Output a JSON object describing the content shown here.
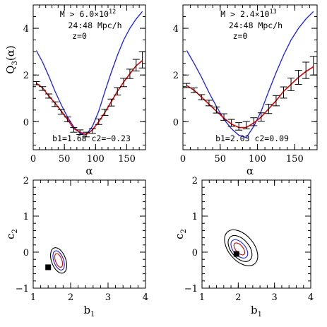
{
  "chart_data": [
    {
      "panel": "top-left",
      "type": "line",
      "ylabel": "Q",
      "ylabel_sub": "3",
      "ylabel_paren": "(α)",
      "xlabel": "α",
      "xlim": [
        0,
        180
      ],
      "ylim": [
        -1.2,
        5.0
      ],
      "xticks": [
        0,
        50,
        100,
        150
      ],
      "yticks": [
        0,
        2,
        4
      ],
      "annotations": {
        "mass_prefix": "M > 6.0×10",
        "mass_exp": "12",
        "scale": "24:48 Mpc/h",
        "redshift": "z=0",
        "fit": "b1=1.68 c2=−0.23"
      },
      "series": [
        {
          "kind": "model-blue",
          "color": "#1a1aff",
          "x": [
            5,
            15,
            25,
            35,
            45,
            55,
            65,
            75,
            85,
            95,
            105,
            115,
            125,
            135,
            145,
            155,
            165,
            175
          ],
          "y": [
            3.05,
            2.55,
            1.95,
            1.3,
            0.72,
            0.2,
            -0.22,
            -0.5,
            -0.55,
            -0.2,
            0.45,
            1.3,
            2.1,
            2.85,
            3.5,
            4.0,
            4.4,
            4.72
          ]
        },
        {
          "kind": "model-red",
          "color": "#dd0000",
          "x": [
            5,
            15,
            25,
            35,
            45,
            55,
            65,
            75,
            85,
            95,
            105,
            115,
            125,
            135,
            145,
            155,
            165,
            175
          ],
          "y": [
            1.65,
            1.45,
            1.1,
            0.8,
            0.45,
            0.1,
            -0.3,
            -0.45,
            -0.55,
            -0.35,
            0.0,
            0.4,
            0.85,
            1.3,
            1.7,
            2.05,
            2.4,
            2.62
          ]
        },
        {
          "kind": "measurement",
          "color": "#000000",
          "x": [
            5,
            15,
            25,
            35,
            45,
            55,
            65,
            75,
            85,
            95,
            105,
            115,
            125,
            135,
            145,
            155,
            165,
            175
          ],
          "y": [
            1.65,
            1.42,
            1.1,
            0.75,
            0.42,
            0.1,
            -0.35,
            -0.45,
            -0.55,
            -0.4,
            0.0,
            0.4,
            0.82,
            1.3,
            1.68,
            2.05,
            2.42,
            2.65
          ],
          "err": [
            0.07,
            0.08,
            0.09,
            0.1,
            0.1,
            0.1,
            0.1,
            0.1,
            0.1,
            0.1,
            0.12,
            0.13,
            0.15,
            0.16,
            0.18,
            0.2,
            0.25,
            0.35
          ]
        }
      ]
    },
    {
      "panel": "top-right",
      "type": "line",
      "xlabel": "α",
      "xlim": [
        0,
        180
      ],
      "ylim": [
        -1.2,
        5.0
      ],
      "xticks": [
        0,
        50,
        100,
        150
      ],
      "yticks": [
        0,
        2,
        4
      ],
      "annotations": {
        "mass_prefix": "M > 2.4×10",
        "mass_exp": "13",
        "scale": "24:48 Mpc/h",
        "redshift": "z=0",
        "fit": "b1=2.03 c2=0.09"
      },
      "series": [
        {
          "kind": "model-blue",
          "color": "#1a1aff",
          "x": [
            5,
            15,
            25,
            35,
            45,
            55,
            65,
            75,
            85,
            95,
            105,
            115,
            125,
            135,
            145,
            155,
            165,
            175
          ],
          "y": [
            3.05,
            2.5,
            1.9,
            1.25,
            0.65,
            0.1,
            -0.3,
            -0.58,
            -0.68,
            -0.2,
            0.45,
            1.3,
            2.1,
            2.85,
            3.5,
            4.0,
            4.4,
            4.72
          ]
        },
        {
          "kind": "model-red",
          "color": "#dd0000",
          "x": [
            5,
            15,
            25,
            35,
            45,
            55,
            65,
            75,
            85,
            95,
            105,
            115,
            125,
            135,
            145,
            155,
            165,
            175
          ],
          "y": [
            1.55,
            1.35,
            1.05,
            0.75,
            0.45,
            0.15,
            -0.1,
            -0.25,
            -0.25,
            -0.05,
            0.2,
            0.55,
            0.9,
            1.3,
            1.6,
            1.9,
            2.15,
            2.35
          ]
        },
        {
          "kind": "measurement",
          "color": "#000000",
          "x": [
            5,
            15,
            25,
            35,
            45,
            55,
            65,
            75,
            85,
            95,
            105,
            115,
            125,
            135,
            145,
            155,
            165,
            175
          ],
          "y": [
            1.55,
            1.35,
            1.05,
            0.8,
            0.5,
            0.2,
            -0.05,
            -0.2,
            -0.15,
            0.0,
            0.2,
            0.55,
            0.9,
            1.25,
            1.6,
            1.9,
            2.2,
            2.4
          ],
          "err": [
            0.09,
            0.1,
            0.11,
            0.12,
            0.13,
            0.14,
            0.15,
            0.16,
            0.16,
            0.17,
            0.18,
            0.2,
            0.22,
            0.24,
            0.27,
            0.3,
            0.35,
            0.4
          ]
        }
      ]
    },
    {
      "panel": "bottom-left",
      "type": "scatter",
      "xlabel": "b",
      "xlabel_sub": "1",
      "ylabel": "c",
      "ylabel_sub": "2",
      "xlim": [
        1,
        4
      ],
      "ylim": [
        -1,
        2
      ],
      "xticks": [
        1,
        2,
        3,
        4
      ],
      "yticks": [
        -1,
        0,
        1,
        2
      ],
      "marker": {
        "x": 1.4,
        "y": -0.42
      },
      "contours": [
        {
          "cx": 1.68,
          "cy": -0.23,
          "rx": 0.085,
          "ry": 0.2,
          "rot": -20,
          "color": "#dd0000"
        },
        {
          "cx": 1.68,
          "cy": -0.23,
          "rx": 0.13,
          "ry": 0.28,
          "rot": -20,
          "color": "#1a1aff"
        },
        {
          "cx": 1.68,
          "cy": -0.23,
          "rx": 0.19,
          "ry": 0.37,
          "rot": -20,
          "color": "#000000"
        }
      ]
    },
    {
      "panel": "bottom-right",
      "type": "scatter",
      "xlabel": "b",
      "xlabel_sub": "1",
      "ylabel": "c",
      "ylabel_sub": "2",
      "xlim": [
        1,
        4
      ],
      "ylim": [
        -1,
        2
      ],
      "xticks": [
        1,
        2,
        3,
        4
      ],
      "yticks": [
        -1,
        0,
        1,
        2
      ],
      "marker": {
        "x": 1.95,
        "y": -0.05
      },
      "contours": [
        {
          "cx": 2.03,
          "cy": 0.09,
          "rx": 0.1,
          "ry": 0.2,
          "rot": -40,
          "color": "#dd0000"
        },
        {
          "cx": 2.03,
          "cy": 0.09,
          "rx": 0.17,
          "ry": 0.3,
          "rot": -40,
          "color": "#1a1aff"
        },
        {
          "cx": 2.05,
          "cy": 0.1,
          "rx": 0.25,
          "ry": 0.42,
          "rot": -40,
          "color": "#000000"
        },
        {
          "cx": 2.08,
          "cy": 0.12,
          "rx": 0.35,
          "ry": 0.58,
          "rot": -40,
          "color": "#000000"
        }
      ]
    }
  ]
}
